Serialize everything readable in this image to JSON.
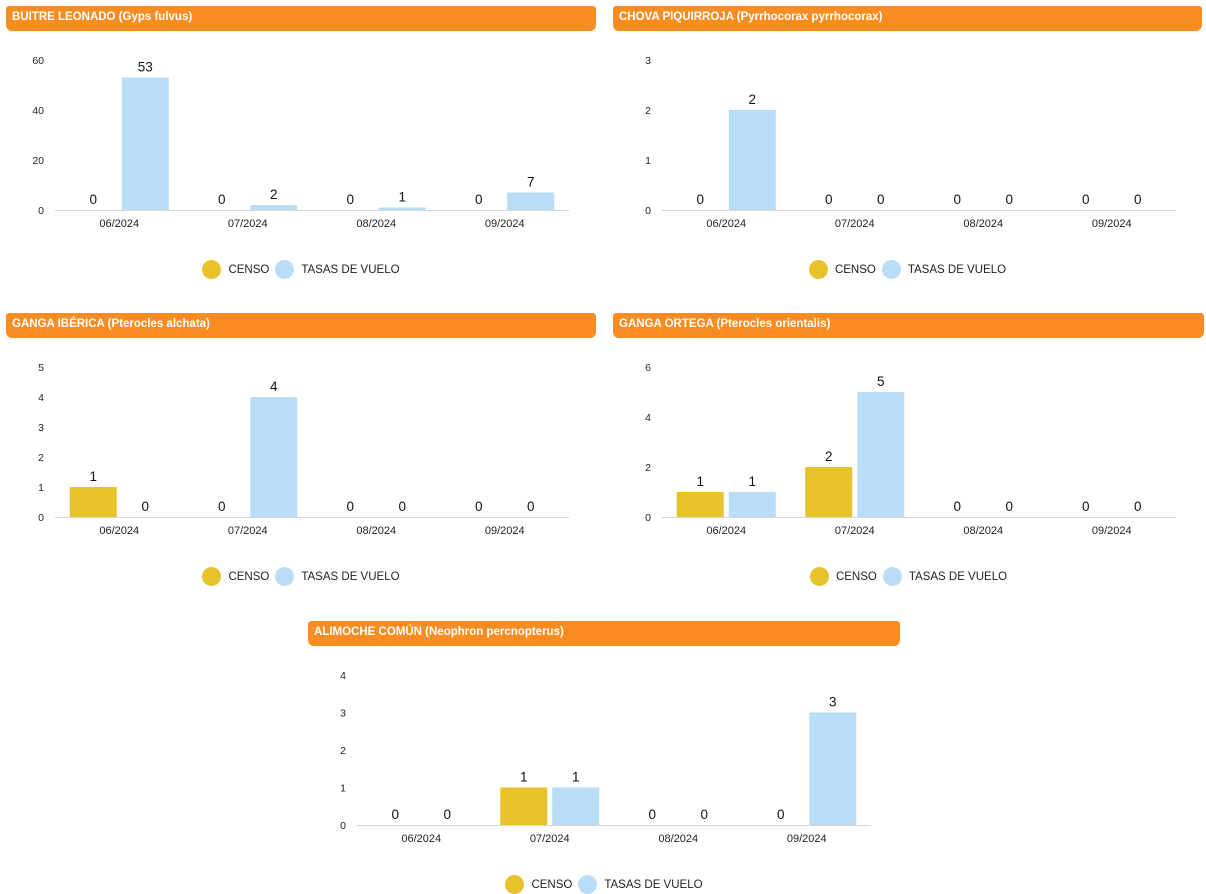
{
  "legend": {
    "censo_label": "CENSO",
    "tasas_label": "TASAS DE VUELO",
    "censo_color": "#e8c22b",
    "tasas_color": "#b9dcf7"
  },
  "chart_data": [
    {
      "type": "bar",
      "title": "BUITRE LEONADO (Gyps fulvus)",
      "categories": [
        "06/2024",
        "07/2024",
        "08/2024",
        "09/2024"
      ],
      "series": [
        {
          "name": "CENSO",
          "values": [
            0,
            0,
            0,
            0
          ]
        },
        {
          "name": "TASAS DE VUELO",
          "values": [
            53,
            2,
            1,
            7
          ]
        }
      ],
      "ylim": [
        0,
        60
      ],
      "yticks": [
        0,
        20,
        40,
        60
      ],
      "legend": "bottom-center"
    },
    {
      "type": "bar",
      "title": "CHOVA PIQUIRROJA (Pyrrhocorax pyrrhocorax)",
      "categories": [
        "06/2024",
        "07/2024",
        "08/2024",
        "09/2024"
      ],
      "series": [
        {
          "name": "CENSO",
          "values": [
            0,
            0,
            0,
            0
          ]
        },
        {
          "name": "TASAS DE VUELO",
          "values": [
            2,
            0,
            0,
            0
          ]
        }
      ],
      "ylim": [
        0,
        3
      ],
      "yticks": [
        0,
        1,
        2,
        3
      ],
      "legend": "bottom-center"
    },
    {
      "type": "bar",
      "title": "GANGA IBÉRICA (Pterocles alchata)",
      "categories": [
        "06/2024",
        "07/2024",
        "08/2024",
        "09/2024"
      ],
      "series": [
        {
          "name": "CENSO",
          "values": [
            1,
            0,
            0,
            0
          ]
        },
        {
          "name": "TASAS DE VUELO",
          "values": [
            0,
            4,
            0,
            0
          ]
        }
      ],
      "ylim": [
        0,
        5
      ],
      "yticks": [
        0,
        1,
        2,
        3,
        4,
        5
      ],
      "legend": "bottom-center"
    },
    {
      "type": "bar",
      "title": "GANGA ORTEGA (Pterocles orientalis)",
      "categories": [
        "06/2024",
        "07/2024",
        "08/2024",
        "09/2024"
      ],
      "series": [
        {
          "name": "CENSO",
          "values": [
            1,
            2,
            0,
            0
          ]
        },
        {
          "name": "TASAS DE VUELO",
          "values": [
            1,
            5,
            0,
            0
          ]
        }
      ],
      "ylim": [
        0,
        6
      ],
      "yticks": [
        0,
        2,
        4,
        6
      ],
      "legend": "bottom-center"
    },
    {
      "type": "bar",
      "title": "ALIMOCHE COMÚN (Neophron percnopterus)",
      "categories": [
        "06/2024",
        "07/2024",
        "08/2024",
        "09/2024"
      ],
      "series": [
        {
          "name": "CENSO",
          "values": [
            0,
            1,
            0,
            0
          ]
        },
        {
          "name": "TASAS DE VUELO",
          "values": [
            0,
            1,
            0,
            3
          ]
        }
      ],
      "ylim": [
        0,
        4
      ],
      "yticks": [
        0,
        1,
        2,
        3,
        4
      ],
      "legend": "bottom-center"
    }
  ]
}
